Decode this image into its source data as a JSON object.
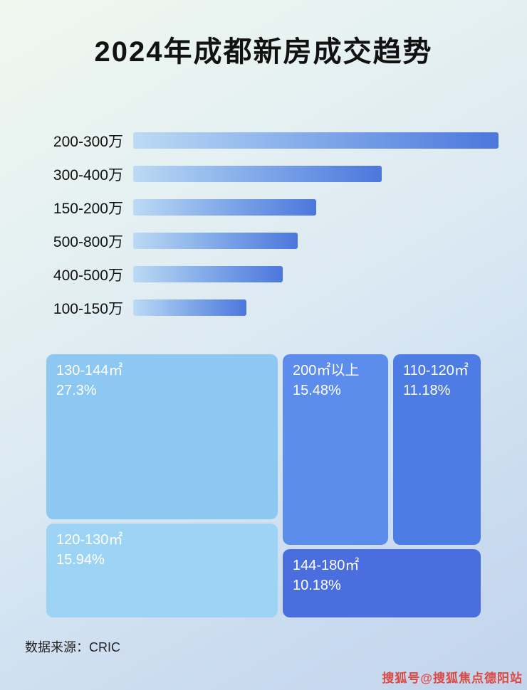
{
  "page": {
    "title": "2024年成都新房成交趋势",
    "source": "数据来源：CRIC",
    "watermark": "搜狐号@搜狐焦点德阳站"
  },
  "chart_data": [
    {
      "type": "bar",
      "orientation": "horizontal",
      "title": "2024年成都新房成交趋势",
      "categories": [
        "200-300万",
        "300-400万",
        "150-200万",
        "500-800万",
        "400-500万",
        "100-150万"
      ],
      "values": [
        100,
        68,
        50,
        45,
        41,
        31
      ],
      "value_note": "relative bar lengths (no numeric axis or data labels shown in image)",
      "xlabel": "",
      "ylabel": "",
      "grid": false,
      "legend": false,
      "bar_gradient": [
        "#bcdaf4",
        "#4c77dc"
      ]
    },
    {
      "type": "treemap",
      "title": "",
      "blocks": [
        {
          "label": "130-144㎡",
          "value": 27.3,
          "percent_label": "27.3%",
          "color": "#8cc8f1"
        },
        {
          "label": "200㎡以上",
          "value": 15.48,
          "percent_label": "15.48%",
          "color": "#5c8cec"
        },
        {
          "label": "110-120㎡",
          "value": 11.18,
          "percent_label": "11.18%",
          "color": "#4e7ce5"
        },
        {
          "label": "120-130㎡",
          "value": 15.94,
          "percent_label": "15.94%",
          "color": "#9dd3f5"
        },
        {
          "label": "144-180㎡",
          "value": 10.18,
          "percent_label": "10.18%",
          "color": "#4a6edd"
        }
      ]
    }
  ]
}
